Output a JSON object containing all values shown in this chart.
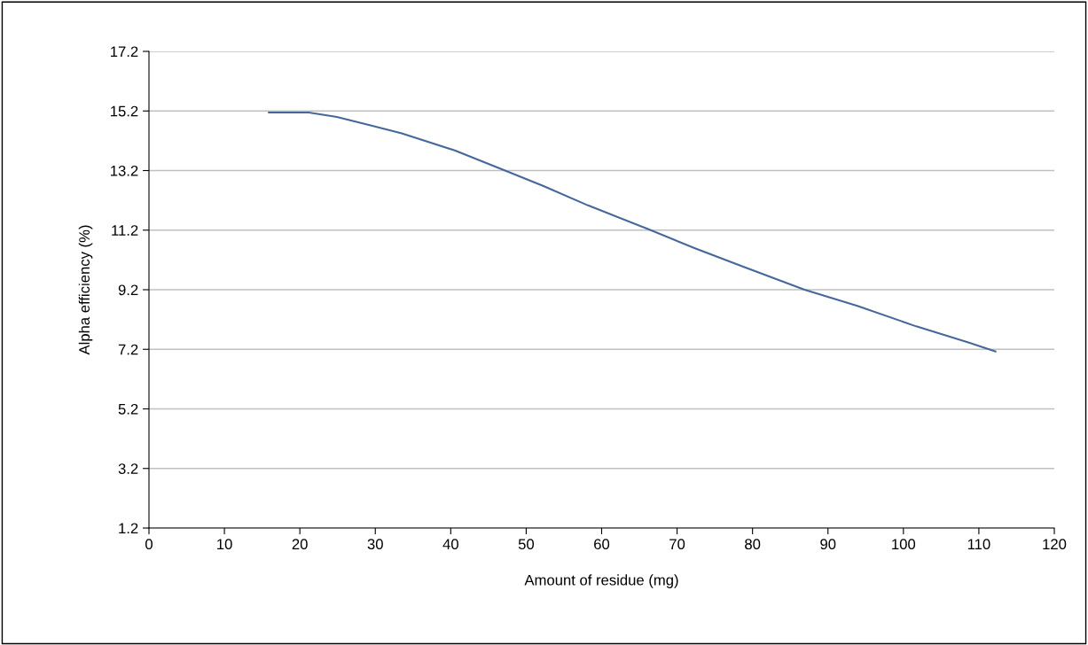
{
  "chart_data": {
    "type": "line",
    "xlabel": "Amount of residue (mg)",
    "ylabel": "Alpha efficiency (%)",
    "series": [
      {
        "color": "#44689a",
        "x": [
          15.9,
          21.2,
          24.9,
          29.6,
          33.5,
          40.6,
          47.2,
          52.3,
          58.2,
          66,
          72.3,
          79,
          86.9,
          93.9,
          101.7,
          108.7,
          112.2
        ],
        "values": [
          15.15,
          15.15,
          15.0,
          14.7,
          14.45,
          13.87,
          13.2,
          12.68,
          12.03,
          11.25,
          10.6,
          9.95,
          9.2,
          8.66,
          7.97,
          7.42,
          7.13
        ]
      }
    ],
    "xlim": [
      0,
      120
    ],
    "xticks": [
      0,
      10,
      20,
      30,
      40,
      50,
      60,
      70,
      80,
      90,
      100,
      110,
      120
    ],
    "ylim": [
      1.2,
      17.2
    ],
    "yticks": [
      1.2,
      3.2,
      5.2,
      7.2,
      9.2,
      11.2,
      13.2,
      15.2,
      17.2
    ],
    "grid": "y",
    "legend": false,
    "marker": "none",
    "line_style": "solid"
  }
}
